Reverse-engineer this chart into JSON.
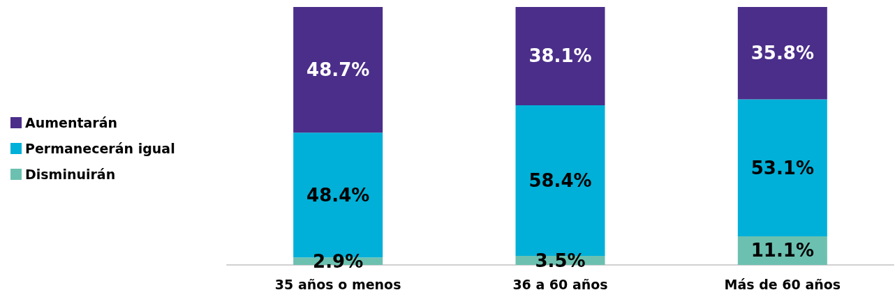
{
  "chart_data": {
    "type": "bar",
    "stacked": true,
    "categories": [
      "35 años o menos",
      "36 a 60 años",
      "Más de 60 años"
    ],
    "series": [
      {
        "name": "Disminuirán",
        "color": "#6cc0b0",
        "values": [
          2.9,
          3.5,
          11.1
        ],
        "value_labels": [
          "2.9%",
          "3.5%",
          "11.1%"
        ]
      },
      {
        "name": "Permanecerán igual",
        "color": "#00b0d8",
        "values": [
          48.4,
          58.4,
          53.1
        ],
        "value_labels": [
          "48.4%",
          "58.4%",
          "53.1%"
        ]
      },
      {
        "name": "Aumentarán",
        "color": "#4b2e8a",
        "values": [
          48.7,
          38.1,
          35.8
        ],
        "value_labels": [
          "48.7%",
          "38.1%",
          "35.8%"
        ]
      }
    ],
    "tick_labels": "x",
    "legend": "left"
  }
}
